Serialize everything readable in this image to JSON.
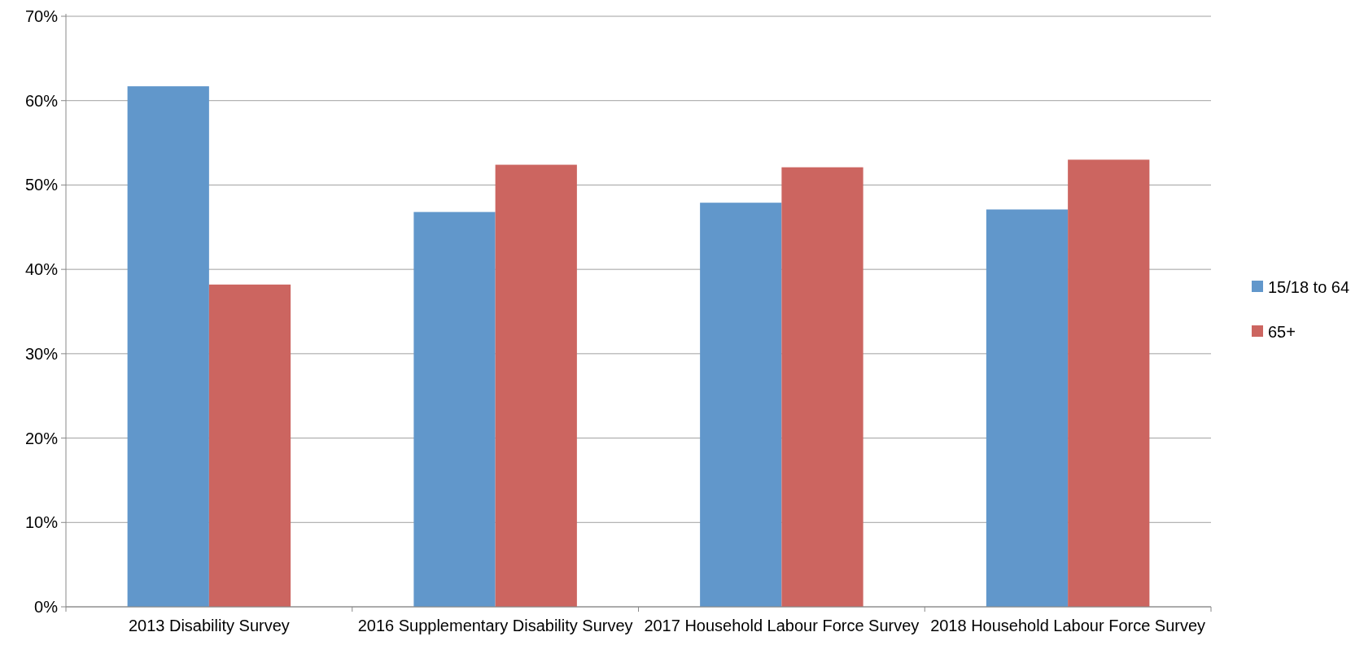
{
  "chart_data": {
    "type": "bar",
    "categories": [
      "2013 Disability Survey",
      "2016 Supplementary Disability Survey",
      "2017 Household Labour Force Survey",
      "2018 Household Labour Force Survey"
    ],
    "series": [
      {
        "name": "15/18 to 64",
        "color": "#6197cb",
        "values": [
          61.7,
          46.8,
          47.9,
          47.1
        ]
      },
      {
        "name": "65+",
        "color": "#cc6560",
        "values": [
          38.2,
          52.4,
          52.1,
          53.0
        ]
      }
    ],
    "ylim": [
      0,
      70
    ],
    "yticks": [
      {
        "value": 0,
        "label": "0%"
      },
      {
        "value": 10,
        "label": "10%"
      },
      {
        "value": 20,
        "label": "20%"
      },
      {
        "value": 30,
        "label": "30%"
      },
      {
        "value": 40,
        "label": "40%"
      },
      {
        "value": 50,
        "label": "50%"
      },
      {
        "value": 60,
        "label": "60%"
      },
      {
        "value": 70,
        "label": "70%"
      }
    ],
    "grid": "y",
    "legend": "right"
  }
}
